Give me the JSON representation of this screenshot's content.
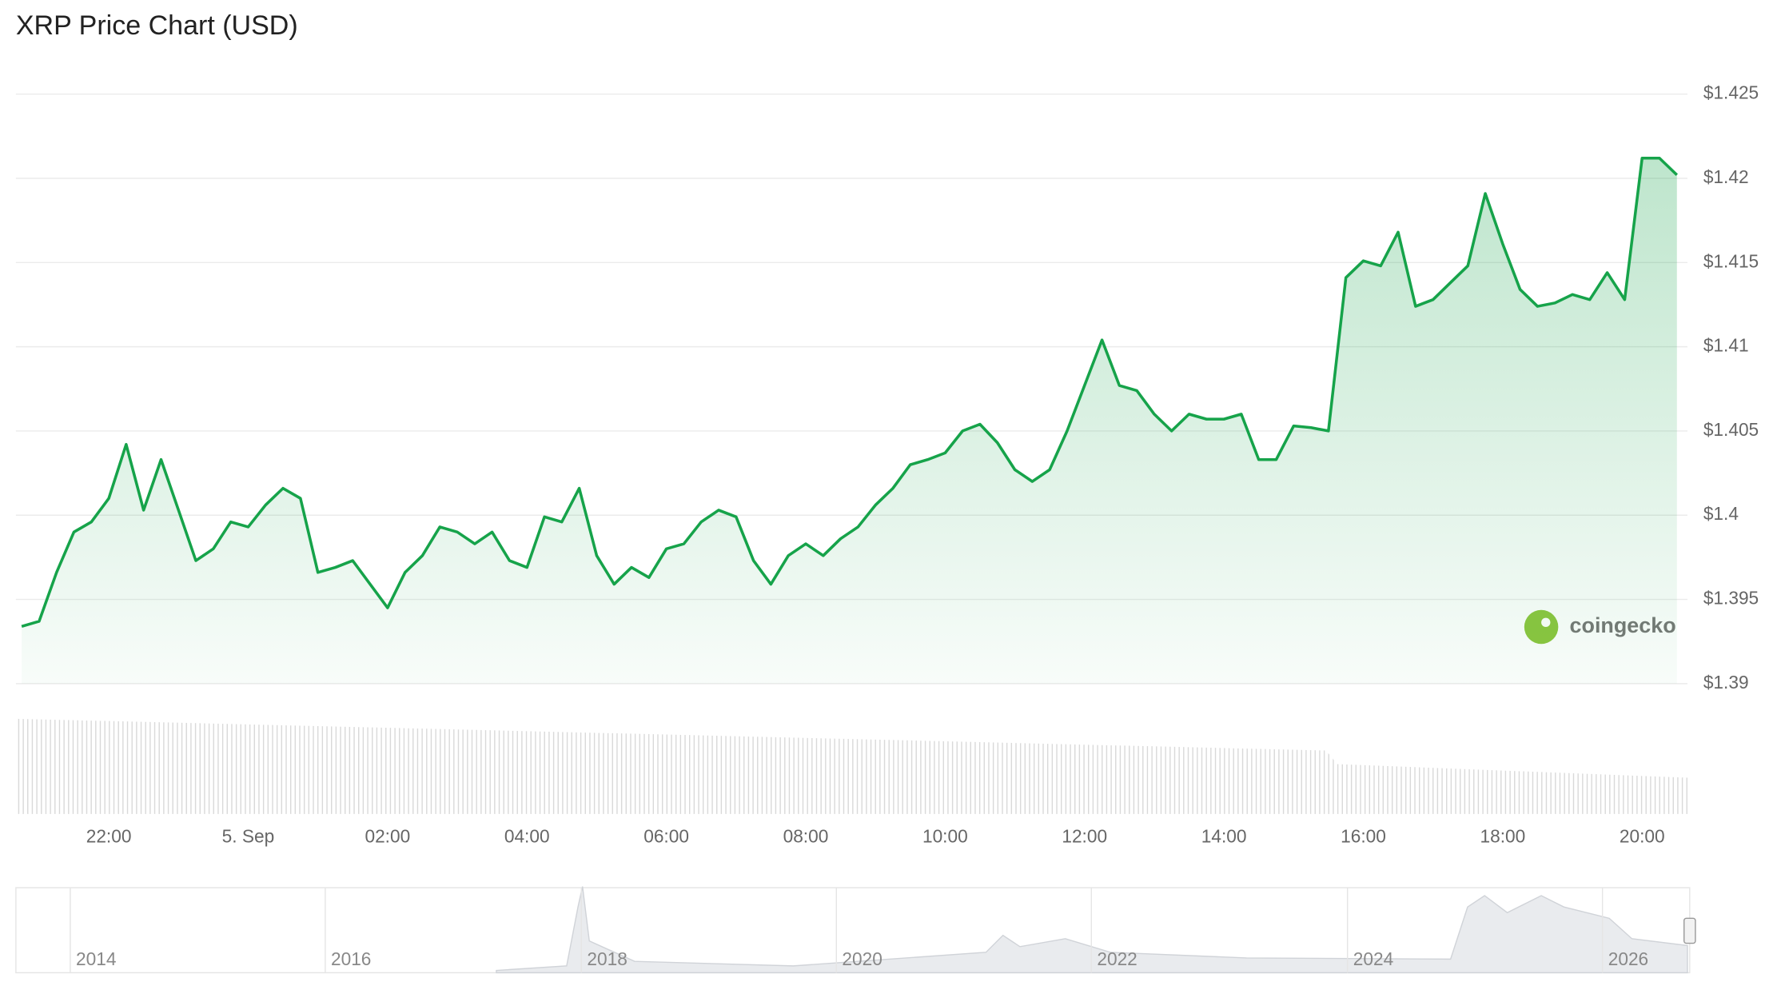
{
  "chart_data": {
    "type": "line",
    "title": "XRP Price Chart (USD)",
    "x": [
      "20:45",
      "21:00",
      "21:15",
      "21:30",
      "21:45",
      "22:00",
      "22:15",
      "22:30",
      "22:45",
      "23:00",
      "23:15",
      "23:30",
      "23:45",
      "00:00",
      "00:15",
      "00:30",
      "00:45",
      "01:00",
      "01:15",
      "01:30",
      "01:45",
      "02:00",
      "02:15",
      "02:30",
      "02:45",
      "03:00",
      "03:15",
      "03:30",
      "03:45",
      "04:00",
      "04:15",
      "04:30",
      "04:45",
      "05:00",
      "05:15",
      "05:30",
      "05:45",
      "06:00",
      "06:15",
      "06:30",
      "06:45",
      "07:00",
      "07:15",
      "07:30",
      "07:45",
      "08:00",
      "08:15",
      "08:30",
      "08:45",
      "09:00",
      "09:15",
      "09:30",
      "09:45",
      "10:00",
      "10:15",
      "10:30",
      "10:45",
      "11:00",
      "11:15",
      "11:30",
      "11:45",
      "12:00",
      "12:15",
      "12:30",
      "12:45",
      "13:00",
      "13:15",
      "13:30",
      "13:45",
      "14:00",
      "14:15",
      "14:30",
      "14:45",
      "15:00",
      "15:15",
      "15:30",
      "15:45",
      "16:00",
      "16:15",
      "16:30",
      "16:45",
      "17:00",
      "17:15",
      "17:30",
      "17:45",
      "18:00",
      "18:15",
      "18:30",
      "18:45",
      "19:00",
      "19:15",
      "19:30",
      "19:45",
      "20:00",
      "20:15",
      "20:30"
    ],
    "series": [
      {
        "name": "XRP",
        "color": "#16a34a",
        "values": [
          1.3934,
          1.3937,
          1.3966,
          1.399,
          1.3996,
          1.401,
          1.4042,
          1.4003,
          1.4033,
          1.4003,
          1.3973,
          1.398,
          1.3996,
          1.3993,
          1.4006,
          1.4016,
          1.401,
          1.3966,
          1.3969,
          1.3973,
          1.3959,
          1.3945,
          1.3966,
          1.3976,
          1.3993,
          1.399,
          1.3983,
          1.399,
          1.3973,
          1.3969,
          1.3999,
          1.3996,
          1.4016,
          1.3976,
          1.3959,
          1.3969,
          1.3963,
          1.398,
          1.3983,
          1.3996,
          1.4003,
          1.3999,
          1.3973,
          1.3959,
          1.3976,
          1.3983,
          1.3976,
          1.3986,
          1.3993,
          1.4006,
          1.4016,
          1.403,
          1.4033,
          1.4037,
          1.405,
          1.4054,
          1.4043,
          1.4027,
          1.402,
          1.4027,
          1.405,
          1.4077,
          1.4104,
          1.4077,
          1.4074,
          1.406,
          1.405,
          1.406,
          1.4057,
          1.4057,
          1.406,
          1.4033,
          1.4033,
          1.4053,
          1.4052,
          1.405,
          1.4141,
          1.4151,
          1.4148,
          1.4168,
          1.4124,
          1.4128,
          1.4138,
          1.4148,
          1.4191,
          1.4161,
          1.4134,
          1.4124,
          1.4126,
          1.4131,
          1.4128,
          1.4144,
          1.4128,
          1.4212,
          1.4212,
          1.4202
        ]
      }
    ],
    "xticks": [
      "22:00",
      {
        "value": "00:00",
        "label": "5. Sep"
      },
      "02:00",
      "04:00",
      "06:00",
      "08:00",
      "10:00",
      "12:00",
      "14:00",
      "16:00",
      "18:00",
      "20:00"
    ],
    "ylim": [
      1.39,
      1.425
    ],
    "yticks": [
      {
        "value": 1.39,
        "label": "$1.39"
      },
      {
        "value": 1.395,
        "label": "$1.395"
      },
      {
        "value": 1.4,
        "label": "$1.4"
      },
      {
        "value": 1.405,
        "label": "$1.405"
      },
      {
        "value": 1.41,
        "label": "$1.41"
      },
      {
        "value": 1.415,
        "label": "$1.415"
      },
      {
        "value": 1.42,
        "label": "$1.42"
      },
      {
        "value": 1.425,
        "label": "$1.425"
      }
    ],
    "grid": true,
    "watermark": "coingecko",
    "navigator": {
      "labels": [
        "2014",
        "2016",
        "2018",
        "2020",
        "2022",
        "2024",
        "2026"
      ]
    }
  }
}
